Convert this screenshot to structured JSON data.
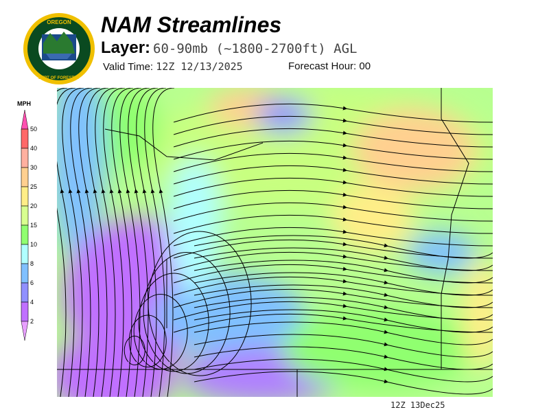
{
  "logo": {
    "text_top": "OREGON",
    "text_bottom": "DEPARTMENT OF FORESTRY"
  },
  "header": {
    "title": "NAM Streamlines",
    "layer_label": "Layer:",
    "layer_value": "60-90mb (~1800-2700ft) AGL",
    "valid_label": "Valid Time:",
    "valid_value": "12Z 12/13/2025",
    "forecast_label": "Forecast Hour:",
    "forecast_value": "00"
  },
  "legend": {
    "unit": "MPH",
    "ticks": [
      "50",
      "40",
      "30",
      "25",
      "20",
      "15",
      "10",
      "8",
      "6",
      "4",
      "2"
    ],
    "colors": [
      "#ff6868",
      "#ffb0a0",
      "#ffd090",
      "#ffee88",
      "#d8ff90",
      "#90ff70",
      "#b0ffff",
      "#80c0ff",
      "#9090ff",
      "#c070ff"
    ],
    "over_color": "#ff50b0",
    "under_color": "#e8a0ff"
  },
  "footer": {
    "stamp": "12Z 13Dec25"
  }
}
